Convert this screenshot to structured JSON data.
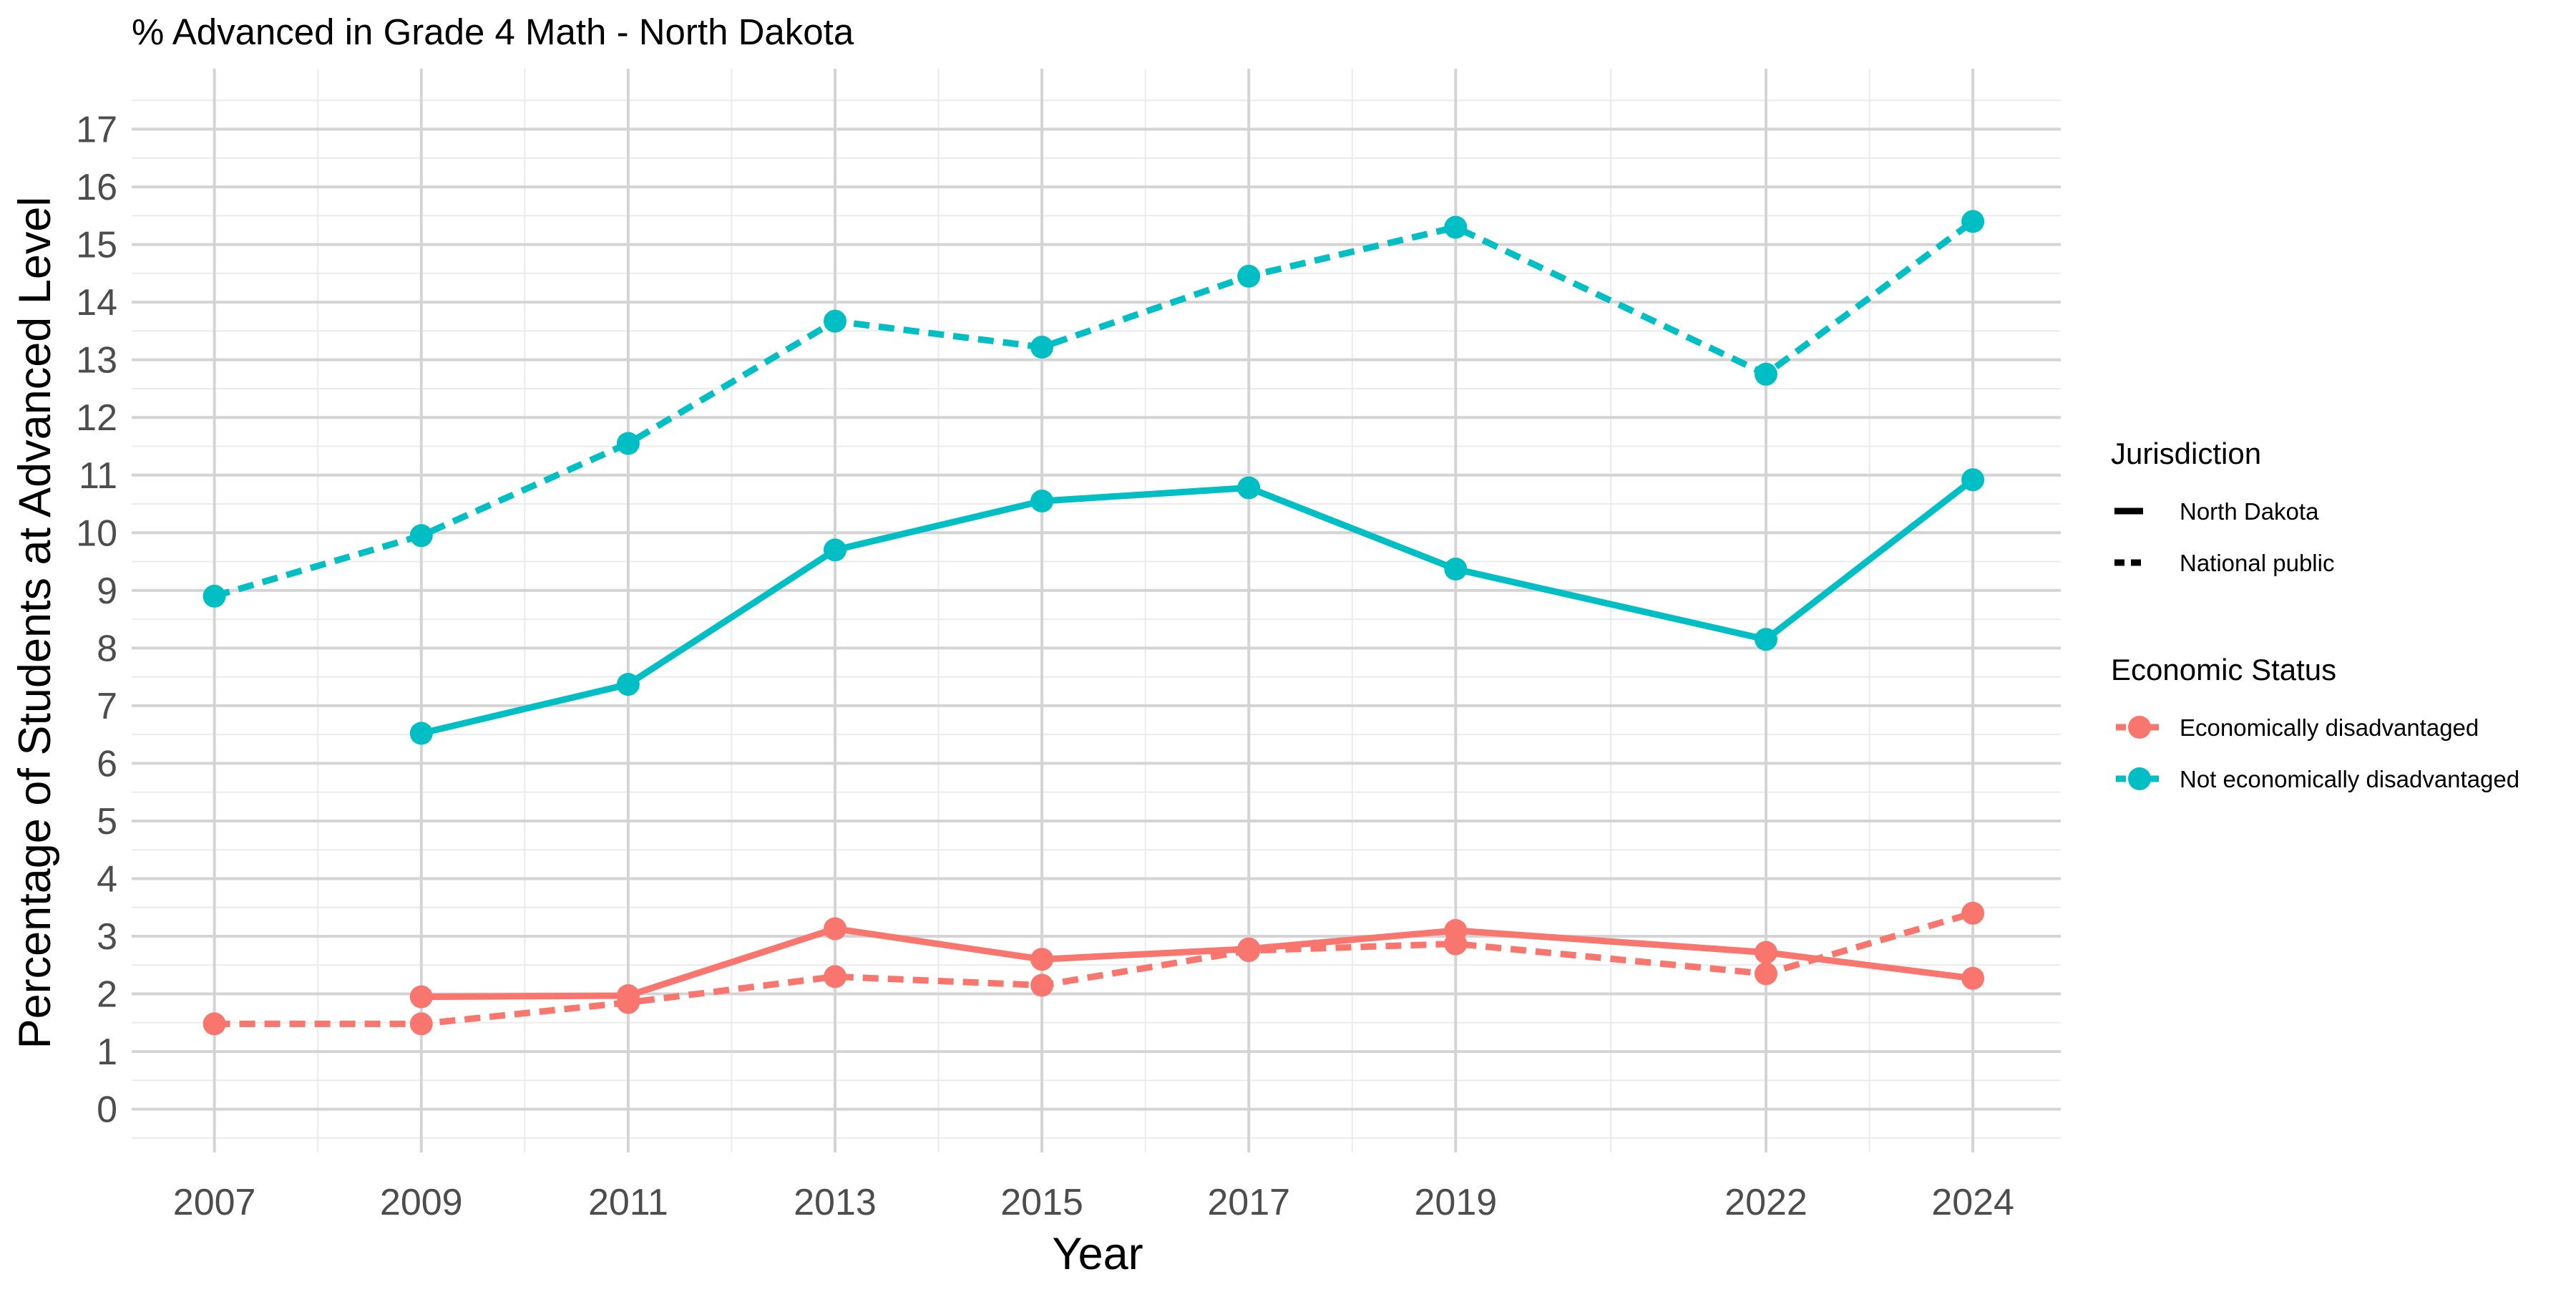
{
  "chart_data": {
    "type": "line",
    "title": "% Advanced in Grade 4 Math - North Dakota",
    "xlabel": "Year",
    "ylabel": "Percentage of Students at Advanced Level",
    "x_ticks": [
      2007,
      2009,
      2011,
      2013,
      2015,
      2017,
      2019,
      2022,
      2024
    ],
    "y_ticks": [
      0,
      1,
      2,
      3,
      4,
      5,
      6,
      7,
      8,
      9,
      10,
      11,
      12,
      13,
      14,
      15,
      16,
      17
    ],
    "xlim": [
      2006.2,
      2024.85
    ],
    "ylim": [
      -0.75,
      18.05
    ],
    "grid": true,
    "legend_position": "right",
    "legends": [
      {
        "title": "Jurisdiction",
        "entries": [
          {
            "label": "North Dakota",
            "linetype": "solid"
          },
          {
            "label": "National public",
            "linetype": "dashed"
          }
        ]
      },
      {
        "title": "Economic Status",
        "entries": [
          {
            "label": "Economically disadvantaged",
            "color": "#F8766D"
          },
          {
            "label": "Not economically disadvantaged",
            "color": "#00BFC4"
          }
        ]
      }
    ],
    "series": [
      {
        "jurisdiction": "National public",
        "status": "Not economically disadvantaged",
        "color": "#00BFC4",
        "linetype": "dashed",
        "points": [
          [
            2007,
            8.9
          ],
          [
            2009,
            9.95
          ],
          [
            2011,
            11.55
          ],
          [
            2013,
            13.67
          ],
          [
            2015,
            13.22
          ],
          [
            2017,
            14.45
          ],
          [
            2019,
            15.3
          ],
          [
            2022,
            12.75
          ],
          [
            2024,
            15.4
          ]
        ]
      },
      {
        "jurisdiction": "North Dakota",
        "status": "Not economically disadvantaged",
        "color": "#00BFC4",
        "linetype": "solid",
        "points": [
          [
            2009,
            6.52
          ],
          [
            2011,
            7.37
          ],
          [
            2013,
            9.7
          ],
          [
            2015,
            10.55
          ],
          [
            2017,
            10.78
          ],
          [
            2019,
            9.37
          ],
          [
            2022,
            8.15
          ],
          [
            2024,
            10.92
          ]
        ]
      },
      {
        "jurisdiction": "North Dakota",
        "status": "Economically disadvantaged",
        "color": "#F8766D",
        "linetype": "solid",
        "points": [
          [
            2009,
            1.95
          ],
          [
            2011,
            1.97
          ],
          [
            2013,
            3.13
          ],
          [
            2015,
            2.6
          ],
          [
            2017,
            2.78
          ],
          [
            2019,
            3.1
          ],
          [
            2022,
            2.72
          ],
          [
            2024,
            2.27
          ]
        ]
      },
      {
        "jurisdiction": "National public",
        "status": "Economically disadvantaged",
        "color": "#F8766D",
        "linetype": "dashed",
        "points": [
          [
            2007,
            1.48
          ],
          [
            2009,
            1.48
          ],
          [
            2011,
            1.85
          ],
          [
            2013,
            2.3
          ],
          [
            2015,
            2.15
          ],
          [
            2017,
            2.75
          ],
          [
            2019,
            2.87
          ],
          [
            2022,
            2.35
          ],
          [
            2024,
            3.4
          ]
        ]
      }
    ]
  }
}
